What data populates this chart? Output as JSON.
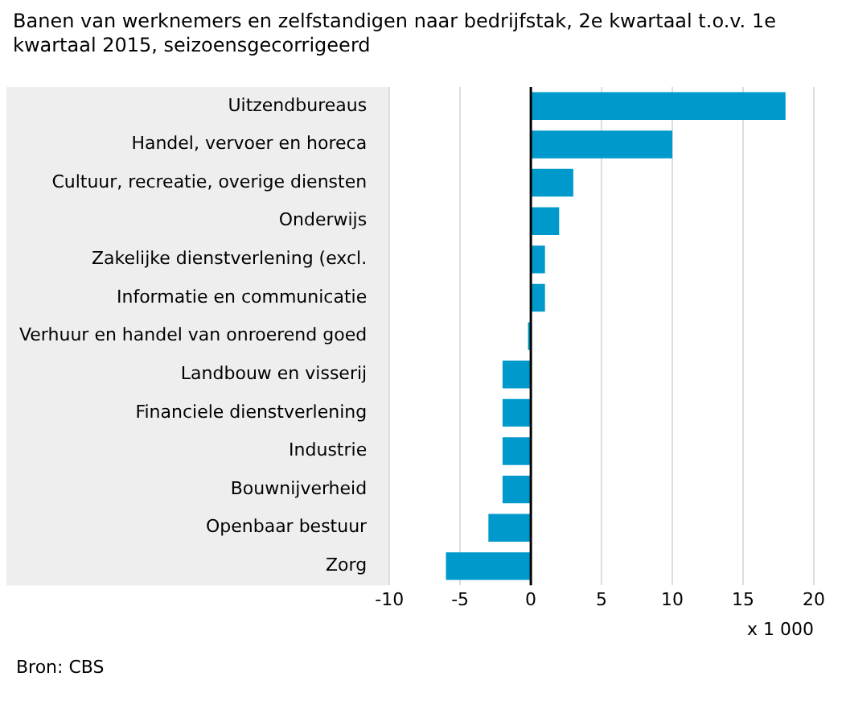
{
  "chart_data": {
    "type": "bar",
    "orientation": "horizontal",
    "title": "Banen van werknemers en zelfstandigen naar bedrijfstak, 2e kwartaal t.o.v. 1e kwartaal 2015, seizoensgecorrigeerd",
    "categories": [
      "Uitzendbureaus",
      "Handel, vervoer en horeca",
      "Cultuur, recreatie, overige diensten",
      "Onderwijs",
      "Zakelijke dienstverlening (excl.",
      "Informatie en communicatie",
      "Verhuur en handel van onroerend goed",
      "Landbouw en visserij",
      "Financiele dienstverlening",
      "Industrie",
      "Bouwnijverheid",
      "Openbaar bestuur",
      "Zorg"
    ],
    "values": [
      18,
      10,
      3,
      2,
      1,
      1,
      -0.2,
      -2,
      -2,
      -2,
      -2,
      -3,
      -6
    ],
    "color": "#0099cc",
    "xlim": [
      -10,
      20
    ],
    "xticks": [
      -10,
      -5,
      0,
      5,
      10,
      15,
      20
    ],
    "xlabel": "x 1 000",
    "grid": "x",
    "legend": false,
    "annotations": [
      "Bron: CBS"
    ]
  }
}
